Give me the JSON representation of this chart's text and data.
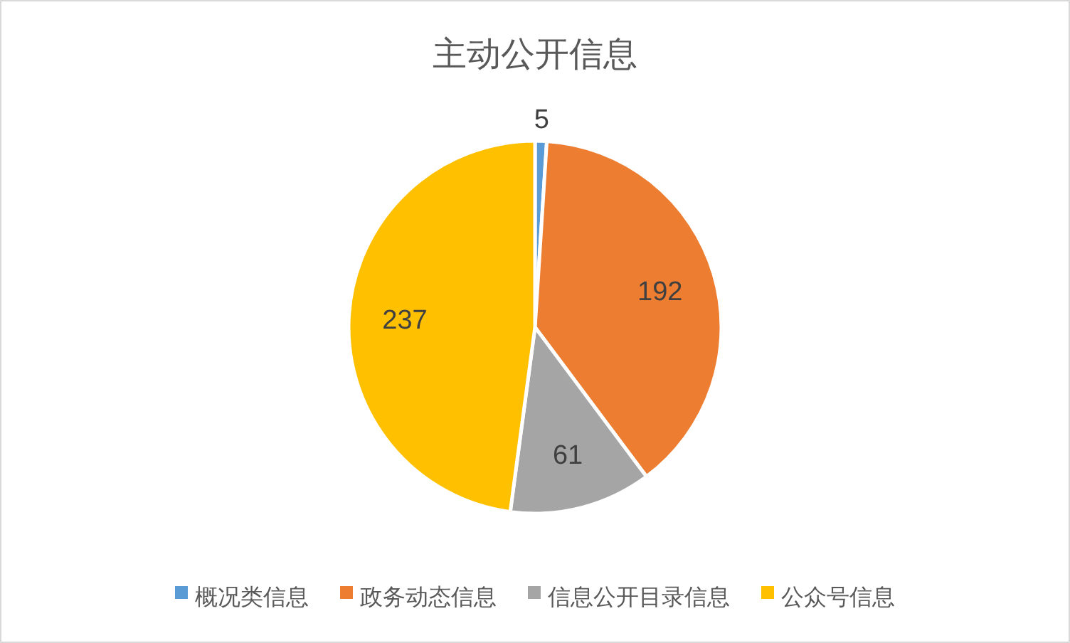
{
  "chart_data": {
    "type": "pie",
    "title": "主动公开信息",
    "categories": [
      "概况类信息",
      "政务动态信息",
      "信息公开目录信息",
      "公众号信息"
    ],
    "values": [
      5,
      192,
      61,
      237
    ],
    "colors": [
      "#5b9bd5",
      "#ed7d31",
      "#a5a5a5",
      "#ffc000"
    ],
    "data_labels": true,
    "legend": "bottom"
  }
}
